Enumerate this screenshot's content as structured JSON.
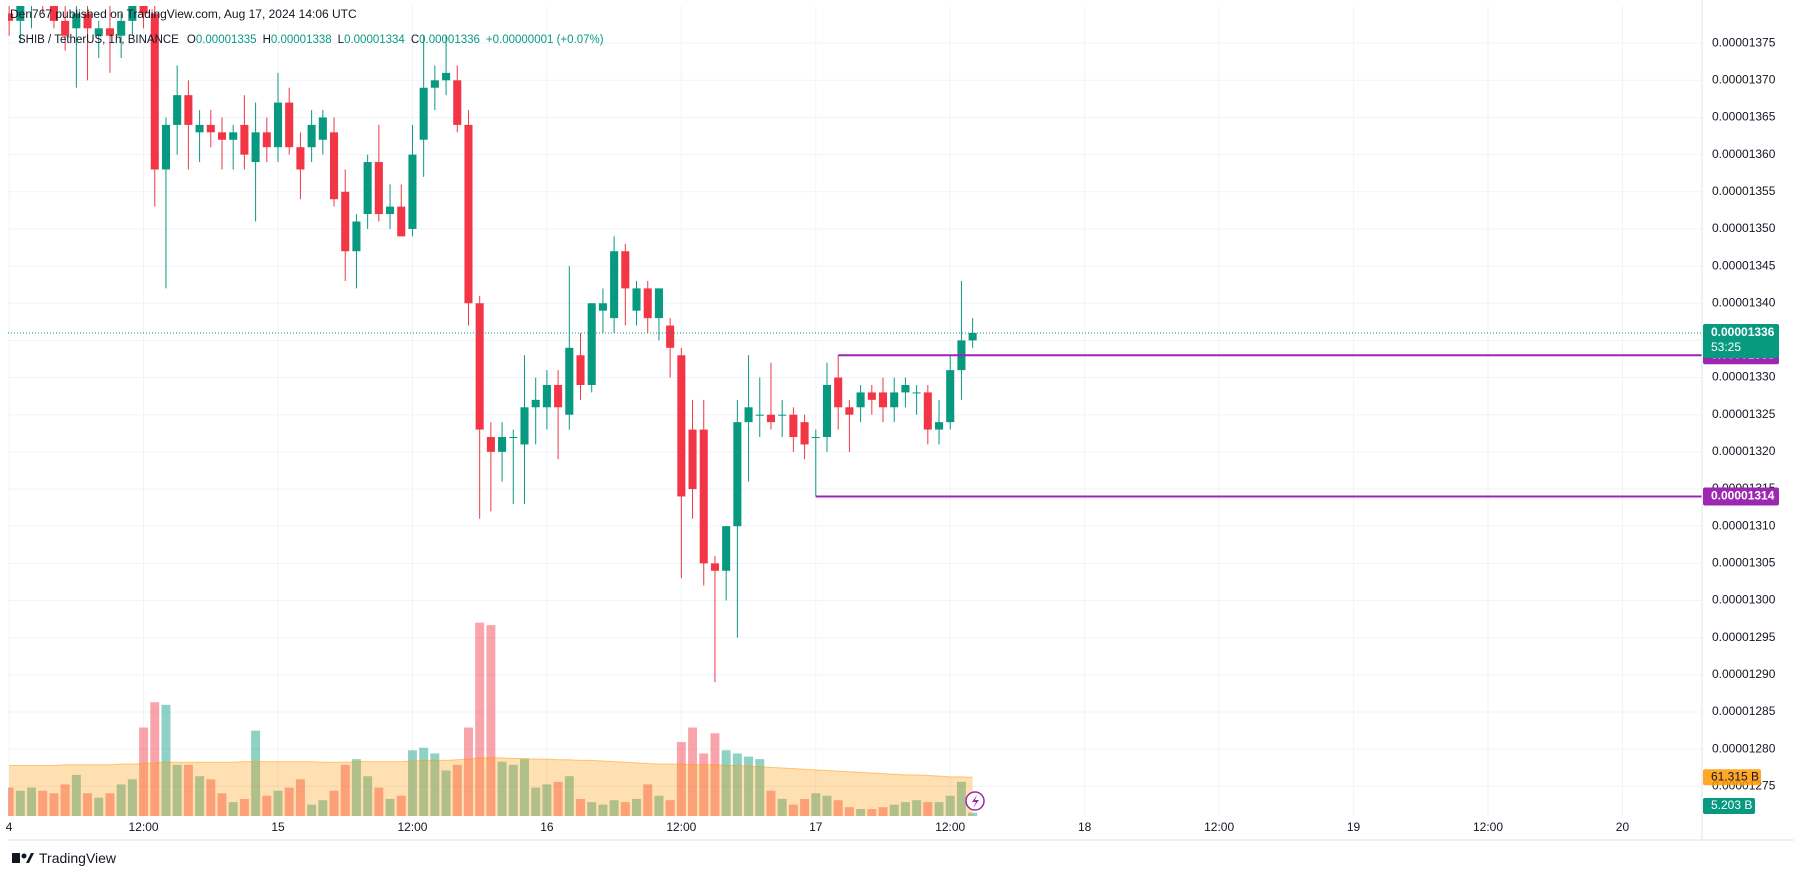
{
  "header": {
    "text": "Den767 published on TradingView.com, Aug 17, 2024 14:06 UTC"
  },
  "footer": {
    "brand": "TradingView"
  },
  "chart_data": {
    "type": "candlestick",
    "legend": {
      "symbol": "SHIB / TetherUS, 1h, BINANCE",
      "labels": [
        "O",
        "H",
        "L",
        "C"
      ],
      "change": "+0.00000001 (+0.07%)"
    },
    "countdown": "53:25",
    "up_color": "#089981",
    "down_color": "#f23645",
    "level_color": "#9c27b0",
    "ma_color": "#ff9800",
    "grid": true,
    "open": [
      1.379e-05,
      1.378e-05,
      1.38e-05,
      1.382e-05,
      1.381e-05,
      1.378e-05,
      1.377e-05,
      1.379e-05,
      1.376e-05,
      1.377e-05,
      1.376e-05,
      1.378e-05,
      1.38e-05,
      1.379e-05,
      1.358e-05,
      1.364e-05,
      1.368e-05,
      1.363e-05,
      1.364e-05,
      1.363e-05,
      1.362e-05,
      1.364e-05,
      1.359e-05,
      1.363e-05,
      1.361e-05,
      1.367e-05,
      1.361e-05,
      1.361e-05,
      1.362e-05,
      1.363e-05,
      1.355e-05,
      1.347e-05,
      1.352e-05,
      1.359e-05,
      1.352e-05,
      1.353e-05,
      1.35e-05,
      1.362e-05,
      1.369e-05,
      1.37e-05,
      1.37e-05,
      1.364e-05,
      1.34e-05,
      1.322e-05,
      1.32e-05,
      1.322e-05,
      1.321e-05,
      1.326e-05,
      1.326e-05,
      1.329e-05,
      1.325e-05,
      1.333e-05,
      1.329e-05,
      1.339e-05,
      1.338e-05,
      1.347e-05,
      1.339e-05,
      1.342e-05,
      1.338e-05,
      1.337e-05,
      1.333e-05,
      1.323e-05,
      1.323e-05,
      1.305e-05,
      1.304e-05,
      1.31e-05,
      1.324e-05,
      1.325e-05,
      1.325e-05,
      1.325e-05,
      1.325e-05,
      1.324e-05,
      1.322e-05,
      1.322e-05,
      1.33e-05,
      1.326e-05,
      1.326e-05,
      1.328e-05,
      1.328e-05,
      1.326e-05,
      1.328e-05,
      1.328e-05,
      1.328e-05,
      1.323e-05,
      1.324e-05,
      1.331e-05,
      1.335e-05
    ],
    "high": [
      1.382e-05,
      1.381e-05,
      1.384e-05,
      1.385e-05,
      1.384e-05,
      1.38e-05,
      1.381e-05,
      1.383e-05,
      1.378e-05,
      1.38e-05,
      1.379e-05,
      1.382e-05,
      1.386e-05,
      1.38e-05,
      1.365e-05,
      1.372e-05,
      1.37e-05,
      1.366e-05,
      1.366e-05,
      1.365e-05,
      1.364e-05,
      1.368e-05,
      1.367e-05,
      1.365e-05,
      1.371e-05,
      1.369e-05,
      1.363e-05,
      1.366e-05,
      1.366e-05,
      1.365e-05,
      1.358e-05,
      1.352e-05,
      1.36e-05,
      1.364e-05,
      1.356e-05,
      1.356e-05,
      1.364e-05,
      1.376e-05,
      1.372e-05,
      1.376e-05,
      1.372e-05,
      1.366e-05,
      1.341e-05,
      1.324e-05,
      1.324e-05,
      1.323e-05,
      1.333e-05,
      1.33e-05,
      1.331e-05,
      1.331e-05,
      1.345e-05,
      1.336e-05,
      1.34e-05,
      1.342e-05,
      1.349e-05,
      1.348e-05,
      1.343e-05,
      1.343e-05,
      1.342e-05,
      1.338e-05,
      1.334e-05,
      1.327e-05,
      1.327e-05,
      1.306e-05,
      1.31e-05,
      1.327e-05,
      1.333e-05,
      1.33e-05,
      1.332e-05,
      1.327e-05,
      1.326e-05,
      1.325e-05,
      1.323e-05,
      1.332e-05,
      1.333e-05,
      1.327e-05,
      1.329e-05,
      1.329e-05,
      1.33e-05,
      1.33e-05,
      1.33e-05,
      1.329e-05,
      1.329e-05,
      1.327e-05,
      1.333e-05,
      1.343e-05,
      1.338e-05
    ],
    "low": [
      1.376e-05,
      1.375e-05,
      1.377e-05,
      1.379e-05,
      1.377e-05,
      1.374e-05,
      1.369e-05,
      1.37e-05,
      1.373e-05,
      1.371e-05,
      1.373e-05,
      1.376e-05,
      1.377e-05,
      1.353e-05,
      1.342e-05,
      1.36e-05,
      1.358e-05,
      1.359e-05,
      1.361e-05,
      1.358e-05,
      1.358e-05,
      1.358e-05,
      1.351e-05,
      1.359e-05,
      1.359e-05,
      1.36e-05,
      1.354e-05,
      1.359e-05,
      1.36e-05,
      1.353e-05,
      1.343e-05,
      1.342e-05,
      1.35e-05,
      1.351e-05,
      1.35e-05,
      1.349e-05,
      1.349e-05,
      1.357e-05,
      1.366e-05,
      1.368e-05,
      1.363e-05,
      1.337e-05,
      1.311e-05,
      1.312e-05,
      1.316e-05,
      1.313e-05,
      1.313e-05,
      1.321e-05,
      1.323e-05,
      1.319e-05,
      1.323e-05,
      1.327e-05,
      1.328e-05,
      1.336e-05,
      1.336e-05,
      1.337e-05,
      1.337e-05,
      1.336e-05,
      1.335e-05,
      1.33e-05,
      1.303e-05,
      1.311e-05,
      1.302e-05,
      1.289e-05,
      1.3e-05,
      1.295e-05,
      1.316e-05,
      1.322e-05,
      1.323e-05,
      1.322e-05,
      1.32e-05,
      1.319e-05,
      1.314e-05,
      1.32e-05,
      1.323e-05,
      1.32e-05,
      1.324e-05,
      1.325e-05,
      1.324e-05,
      1.324e-05,
      1.326e-05,
      1.325e-05,
      1.321e-05,
      1.321e-05,
      1.323e-05,
      1.327e-05,
      1.334e-05
    ],
    "close": [
      1.378e-05,
      1.38e-05,
      1.382e-05,
      1.381e-05,
      1.378e-05,
      1.376e-05,
      1.379e-05,
      1.377e-05,
      1.377e-05,
      1.376e-05,
      1.378e-05,
      1.38e-05,
      1.379e-05,
      1.358e-05,
      1.364e-05,
      1.368e-05,
      1.364e-05,
      1.364e-05,
      1.363e-05,
      1.362e-05,
      1.363e-05,
      1.36e-05,
      1.363e-05,
      1.361e-05,
      1.367e-05,
      1.361e-05,
      1.358e-05,
      1.364e-05,
      1.365e-05,
      1.354e-05,
      1.347e-05,
      1.351e-05,
      1.359e-05,
      1.352e-05,
      1.353e-05,
      1.349e-05,
      1.36e-05,
      1.369e-05,
      1.37e-05,
      1.371e-05,
      1.364e-05,
      1.34e-05,
      1.323e-05,
      1.32e-05,
      1.322e-05,
      1.322e-05,
      1.326e-05,
      1.327e-05,
      1.329e-05,
      1.326e-05,
      1.334e-05,
      1.329e-05,
      1.34e-05,
      1.34e-05,
      1.347e-05,
      1.342e-05,
      1.342e-05,
      1.338e-05,
      1.342e-05,
      1.334e-05,
      1.314e-05,
      1.315e-05,
      1.305e-05,
      1.304e-05,
      1.31e-05,
      1.324e-05,
      1.326e-05,
      1.325e-05,
      1.324e-05,
      1.325e-05,
      1.322e-05,
      1.321e-05,
      1.322e-05,
      1.329e-05,
      1.326e-05,
      1.325e-05,
      1.328e-05,
      1.327e-05,
      1.326e-05,
      1.328e-05,
      1.329e-05,
      1.328e-05,
      1.323e-05,
      1.324e-05,
      1.331e-05,
      1.335e-05,
      1.336e-05
    ],
    "volumes": [
      45,
      40,
      45,
      40,
      36,
      50,
      65,
      36,
      29,
      36,
      50,
      58,
      140,
      180,
      176,
      81,
      81,
      63,
      58,
      36,
      22,
      27,
      135,
      32,
      40,
      45,
      58,
      18,
      25,
      40,
      81,
      90,
      63,
      45,
      27,
      32,
      104,
      108,
      99,
      72,
      81,
      140,
      306,
      302,
      86,
      81,
      90,
      45,
      50,
      54,
      63,
      27,
      22,
      18,
      25,
      22,
      27,
      50,
      32,
      25,
      117,
      140,
      99,
      131,
      104,
      99,
      94,
      90,
      40,
      27,
      18,
      27,
      36,
      32,
      25,
      14,
      11,
      11,
      14,
      18,
      22,
      25,
      22,
      22,
      32,
      54,
      5.203
    ],
    "volume_ma": [
      80,
      80,
      80,
      80,
      80,
      81,
      81,
      81,
      81,
      81,
      82,
      82,
      83,
      84,
      85,
      85,
      85,
      85,
      85,
      85,
      85,
      86,
      86,
      86,
      86,
      86,
      86,
      86,
      85,
      85,
      85,
      86,
      86,
      86,
      86,
      86,
      87,
      88,
      88,
      88,
      89,
      90,
      92,
      92,
      92,
      91,
      91,
      90,
      90,
      89,
      89,
      88,
      88,
      87,
      86,
      85,
      84,
      83,
      82,
      82,
      82,
      81,
      81,
      81,
      80,
      80,
      79,
      78,
      77,
      76,
      75,
      74,
      73,
      72,
      71,
      70,
      69,
      68,
      67,
      66,
      65,
      65,
      64,
      63,
      62,
      62,
      61.315
    ],
    "volume_labels": {
      "ma": "61.315 B",
      "last": "5.203 B"
    },
    "volume_ylim": [
      0,
      500
    ],
    "levels": [
      {
        "value": 1.333e-05,
        "from": 74
      },
      {
        "value": 1.314e-05,
        "from": 72
      }
    ],
    "xlim": [
      -0.1,
      151.1
    ],
    "xticks": [
      {
        "value": 0,
        "label": "4"
      },
      {
        "value": 12,
        "label": "12:00"
      },
      {
        "value": 24,
        "label": "15"
      },
      {
        "value": 36,
        "label": "12:00"
      },
      {
        "value": 48,
        "label": "16"
      },
      {
        "value": 60,
        "label": "12:00"
      },
      {
        "value": 72,
        "label": "17"
      },
      {
        "value": 84,
        "label": "12:00"
      },
      {
        "value": 96,
        "label": "18"
      },
      {
        "value": 108,
        "label": "12:00"
      },
      {
        "value": 120,
        "label": "19"
      },
      {
        "value": 132,
        "label": "12:00"
      },
      {
        "value": 144,
        "label": "20"
      }
    ],
    "ylim": [
      1.271e-05,
      1.38e-05
    ],
    "yticks": [
      1.275e-05,
      {
        "value": 1.28e-05,
        "label": "0.00001280"
      },
      1.285e-05,
      {
        "value": 1.29e-05,
        "label": "0.00001290"
      },
      1.295e-05,
      {
        "value": 1.3e-05,
        "label": "0.00001300"
      },
      1.305e-05,
      {
        "value": 1.31e-05,
        "label": "0.00001310"
      },
      1.315e-05,
      {
        "value": 1.32e-05,
        "label": "0.00001320"
      },
      1.325e-05,
      {
        "value": 1.33e-05,
        "label": "0.00001330"
      },
      1.335e-05,
      {
        "value": 1.34e-05,
        "label": "0.00001340"
      },
      1.345e-05,
      {
        "value": 1.35e-05,
        "label": "0.00001350"
      },
      1.355e-05,
      {
        "value": 1.36e-05,
        "label": "0.00001360"
      },
      1.365e-05,
      {
        "value": 1.37e-05,
        "label": "0.00001370"
      },
      1.375e-05
    ]
  }
}
